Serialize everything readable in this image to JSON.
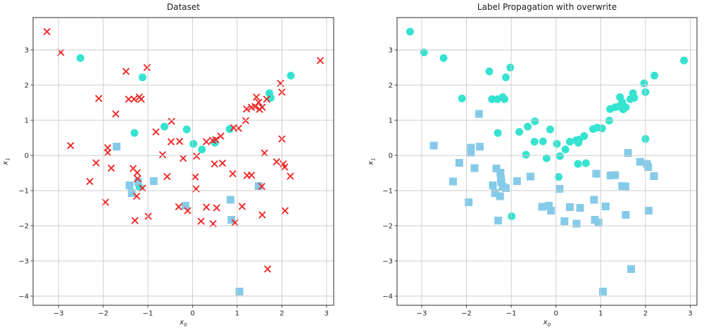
{
  "figure": {
    "background": "#ffffff"
  },
  "style": {
    "grid_color": "#cbcbcb",
    "spine_color": "#2e2e2e",
    "tick_color": "#333333",
    "text_color": "#262626",
    "unlabeled_color": "#f02424",
    "class0_color": "#35e3d0",
    "class1_color": "#85cbe9"
  },
  "chart_data": [
    {
      "type": "scatter",
      "title": "Dataset",
      "xlabel_base": "x",
      "xlabel_sub": "0",
      "ylabel_base": "x",
      "ylabel_sub": "1",
      "xlim": [
        -3.57,
        3.16
      ],
      "ylim": [
        -4.26,
        3.92
      ],
      "grid": true,
      "legend": false,
      "xticks": [
        {
          "v": -3,
          "label": "−3"
        },
        {
          "v": -2,
          "label": "−2"
        },
        {
          "v": -1,
          "label": "−1"
        },
        {
          "v": 0,
          "label": "0"
        },
        {
          "v": 1,
          "label": "1"
        },
        {
          "v": 2,
          "label": "2"
        },
        {
          "v": 3,
          "label": "3"
        }
      ],
      "yticks": [
        {
          "v": 3,
          "label": "3"
        },
        {
          "v": 2,
          "label": "2"
        },
        {
          "v": 1,
          "label": "1"
        },
        {
          "v": 0,
          "label": "0"
        },
        {
          "v": -1,
          "label": "−1"
        },
        {
          "v": -2,
          "label": "−2"
        },
        {
          "v": -3,
          "label": "−3"
        },
        {
          "v": -4,
          "label": "−4"
        }
      ],
      "series": [
        {
          "name": "labeled-class-0",
          "marker": "circle",
          "color": "#35e3d0",
          "size": 11,
          "points": [
            [
              -2.51,
              2.77
            ],
            [
              -1.12,
              2.22
            ],
            [
              2.2,
              2.27
            ],
            [
              1.72,
              1.77
            ],
            [
              1.75,
              1.64
            ],
            [
              -0.63,
              0.82
            ],
            [
              -1.3,
              0.64
            ],
            [
              0.83,
              0.75
            ],
            [
              -0.13,
              0.74
            ],
            [
              0.5,
              0.36
            ],
            [
              0.02,
              0.33
            ],
            [
              0.21,
              0.17
            ],
            [
              -1.19,
              -0.89
            ]
          ]
        },
        {
          "name": "labeled-class-1",
          "marker": "square",
          "color": "#85cbe9",
          "size": 11,
          "points": [
            [
              -1.7,
              0.25
            ],
            [
              -1.22,
              -0.75
            ],
            [
              -0.87,
              -0.73
            ],
            [
              -1.41,
              -0.85
            ],
            [
              -1.36,
              -1.07
            ],
            [
              -0.16,
              -1.43
            ],
            [
              0.85,
              -1.26
            ],
            [
              1.48,
              -0.87
            ],
            [
              0.87,
              -1.83
            ],
            [
              1.05,
              -3.87
            ]
          ]
        },
        {
          "name": "unlabeled",
          "marker": "x",
          "color": "#f02424",
          "size": 9,
          "points": [
            [
              -3.26,
              3.52
            ],
            [
              -2.95,
              2.93
            ],
            [
              -1.49,
              2.39
            ],
            [
              -1.02,
              2.5
            ],
            [
              2.86,
              2.7
            ],
            [
              1.97,
              2.05
            ],
            [
              2.0,
              1.8
            ],
            [
              -2.1,
              1.62
            ],
            [
              -1.43,
              1.6
            ],
            [
              -1.31,
              1.6
            ],
            [
              -1.19,
              1.66
            ],
            [
              -1.15,
              1.6
            ],
            [
              1.43,
              1.66
            ],
            [
              1.66,
              1.6
            ],
            [
              1.48,
              1.51
            ],
            [
              1.21,
              1.32
            ],
            [
              1.32,
              1.37
            ],
            [
              1.4,
              1.39
            ],
            [
              1.5,
              1.31
            ],
            [
              1.56,
              1.37
            ],
            [
              -1.72,
              1.18
            ],
            [
              1.19,
              0.99
            ],
            [
              -0.47,
              0.97
            ],
            [
              -0.82,
              0.67
            ],
            [
              0.92,
              0.79
            ],
            [
              1.03,
              0.77
            ],
            [
              0.63,
              0.55
            ],
            [
              0.45,
              0.43
            ],
            [
              0.52,
              0.45
            ],
            [
              0.31,
              0.39
            ],
            [
              -0.48,
              0.39
            ],
            [
              -0.29,
              0.4
            ],
            [
              2.0,
              0.47
            ],
            [
              -2.73,
              0.28
            ],
            [
              -1.9,
              0.22
            ],
            [
              -1.9,
              0.08
            ],
            [
              -0.67,
              0.02
            ],
            [
              0.09,
              -0.02
            ],
            [
              1.61,
              0.07
            ],
            [
              -0.21,
              -0.08
            ],
            [
              -2.16,
              -0.21
            ],
            [
              -1.82,
              -0.36
            ],
            [
              -1.33,
              -0.37
            ],
            [
              0.49,
              -0.24
            ],
            [
              0.67,
              -0.22
            ],
            [
              1.88,
              -0.18
            ],
            [
              2.03,
              -0.24
            ],
            [
              2.06,
              -0.33
            ],
            [
              -2.3,
              -0.74
            ],
            [
              -0.57,
              -0.6
            ],
            [
              0.9,
              -0.52
            ],
            [
              1.22,
              -0.57
            ],
            [
              1.32,
              -0.56
            ],
            [
              2.19,
              -0.59
            ],
            [
              0.06,
              -0.61
            ],
            [
              -1.24,
              -0.49
            ],
            [
              -1.23,
              -0.66
            ],
            [
              -1.12,
              -0.93
            ],
            [
              -1.25,
              -1.16
            ],
            [
              0.08,
              -0.95
            ],
            [
              -1.95,
              -1.33
            ],
            [
              -0.99,
              -1.73
            ],
            [
              -1.29,
              -1.85
            ],
            [
              -0.31,
              -1.46
            ],
            [
              -0.11,
              -1.57
            ],
            [
              1.11,
              -1.45
            ],
            [
              0.31,
              -1.47
            ],
            [
              0.54,
              -1.49
            ],
            [
              2.07,
              -1.57
            ],
            [
              1.56,
              -1.69
            ],
            [
              0.19,
              -1.87
            ],
            [
              0.46,
              -1.94
            ],
            [
              0.95,
              -1.91
            ],
            [
              1.68,
              -3.23
            ],
            [
              1.55,
              -0.88
            ]
          ]
        }
      ]
    },
    {
      "type": "scatter",
      "title": "Label Propagation with overwrite",
      "xlabel_base": "x",
      "xlabel_sub": "0",
      "ylabel_base": "x",
      "ylabel_sub": "1",
      "xlim": [
        -3.55,
        3.15
      ],
      "ylim": [
        -4.26,
        3.92
      ],
      "grid": true,
      "legend": false,
      "xticks": [
        {
          "v": -3,
          "label": "−3"
        },
        {
          "v": -2,
          "label": "−2"
        },
        {
          "v": -1,
          "label": "−1"
        },
        {
          "v": 0,
          "label": "0"
        },
        {
          "v": 1,
          "label": "1"
        },
        {
          "v": 2,
          "label": "2"
        },
        {
          "v": 3,
          "label": "3"
        }
      ],
      "yticks": [
        {
          "v": 3,
          "label": "3"
        },
        {
          "v": 2,
          "label": "2"
        },
        {
          "v": 1,
          "label": "1"
        },
        {
          "v": 0,
          "label": "0"
        },
        {
          "v": -1,
          "label": "−1"
        },
        {
          "v": -2,
          "label": "−2"
        },
        {
          "v": -3,
          "label": "−3"
        },
        {
          "v": -4,
          "label": "−4"
        }
      ],
      "series": [
        {
          "name": "propagated-class-1",
          "marker": "square",
          "color": "#85cbe9",
          "size": 11,
          "points": [
            [
              -1.72,
              1.18
            ],
            [
              -2.73,
              0.28
            ],
            [
              -1.9,
              0.22
            ],
            [
              -1.9,
              0.08
            ],
            [
              -1.7,
              0.25
            ],
            [
              1.61,
              0.07
            ],
            [
              -2.16,
              -0.21
            ],
            [
              -1.82,
              -0.36
            ],
            [
              -1.33,
              -0.37
            ],
            [
              1.88,
              -0.18
            ],
            [
              2.03,
              -0.24
            ],
            [
              2.06,
              -0.33
            ],
            [
              -2.3,
              -0.74
            ],
            [
              -0.57,
              -0.6
            ],
            [
              0.9,
              -0.52
            ],
            [
              1.22,
              -0.57
            ],
            [
              1.32,
              -0.56
            ],
            [
              2.19,
              -0.59
            ],
            [
              -1.24,
              -0.49
            ],
            [
              -1.23,
              -0.66
            ],
            [
              -1.22,
              -0.75
            ],
            [
              -0.87,
              -0.73
            ],
            [
              -1.41,
              -0.85
            ],
            [
              -1.19,
              -0.89
            ],
            [
              -1.12,
              -0.93
            ],
            [
              -1.36,
              -1.07
            ],
            [
              -1.25,
              -1.16
            ],
            [
              0.08,
              -0.95
            ],
            [
              -1.95,
              -1.33
            ],
            [
              -1.29,
              -1.85
            ],
            [
              -0.31,
              -1.46
            ],
            [
              -0.16,
              -1.43
            ],
            [
              -0.11,
              -1.57
            ],
            [
              0.85,
              -1.26
            ],
            [
              1.11,
              -1.45
            ],
            [
              0.31,
              -1.47
            ],
            [
              0.54,
              -1.49
            ],
            [
              2.07,
              -1.57
            ],
            [
              1.56,
              -1.69
            ],
            [
              0.19,
              -1.87
            ],
            [
              0.46,
              -1.94
            ],
            [
              0.87,
              -1.83
            ],
            [
              0.95,
              -1.91
            ],
            [
              1.55,
              -0.88
            ],
            [
              1.48,
              -0.87
            ],
            [
              1.68,
              -3.23
            ],
            [
              1.05,
              -3.87
            ]
          ]
        },
        {
          "name": "propagated-class-0",
          "marker": "circle",
          "color": "#35e3d0",
          "size": 11,
          "points": [
            [
              -3.26,
              3.52
            ],
            [
              -2.95,
              2.93
            ],
            [
              -2.51,
              2.77
            ],
            [
              -1.49,
              2.39
            ],
            [
              -1.02,
              2.5
            ],
            [
              -1.12,
              2.22
            ],
            [
              2.86,
              2.7
            ],
            [
              2.2,
              2.27
            ],
            [
              1.97,
              2.05
            ],
            [
              2.0,
              1.8
            ],
            [
              -2.1,
              1.62
            ],
            [
              -1.43,
              1.6
            ],
            [
              -1.31,
              1.6
            ],
            [
              -1.19,
              1.66
            ],
            [
              -1.15,
              1.6
            ],
            [
              1.72,
              1.77
            ],
            [
              1.75,
              1.64
            ],
            [
              1.43,
              1.66
            ],
            [
              1.66,
              1.6
            ],
            [
              1.48,
              1.51
            ],
            [
              1.21,
              1.32
            ],
            [
              1.32,
              1.37
            ],
            [
              1.4,
              1.39
            ],
            [
              1.5,
              1.31
            ],
            [
              1.56,
              1.37
            ],
            [
              1.19,
              0.99
            ],
            [
              -0.47,
              0.97
            ],
            [
              -0.63,
              0.82
            ],
            [
              -0.82,
              0.67
            ],
            [
              -1.3,
              0.64
            ],
            [
              0.83,
              0.75
            ],
            [
              0.92,
              0.79
            ],
            [
              1.03,
              0.77
            ],
            [
              -0.13,
              0.74
            ],
            [
              0.63,
              0.55
            ],
            [
              0.45,
              0.43
            ],
            [
              0.52,
              0.45
            ],
            [
              0.5,
              0.36
            ],
            [
              0.31,
              0.39
            ],
            [
              -0.48,
              0.39
            ],
            [
              -0.29,
              0.4
            ],
            [
              0.02,
              0.33
            ],
            [
              0.21,
              0.17
            ],
            [
              2.0,
              0.47
            ],
            [
              -0.67,
              0.02
            ],
            [
              0.09,
              -0.02
            ],
            [
              -0.21,
              -0.08
            ],
            [
              0.49,
              -0.24
            ],
            [
              0.67,
              -0.22
            ],
            [
              0.06,
              -0.61
            ],
            [
              -0.99,
              -1.73
            ]
          ]
        }
      ]
    }
  ]
}
